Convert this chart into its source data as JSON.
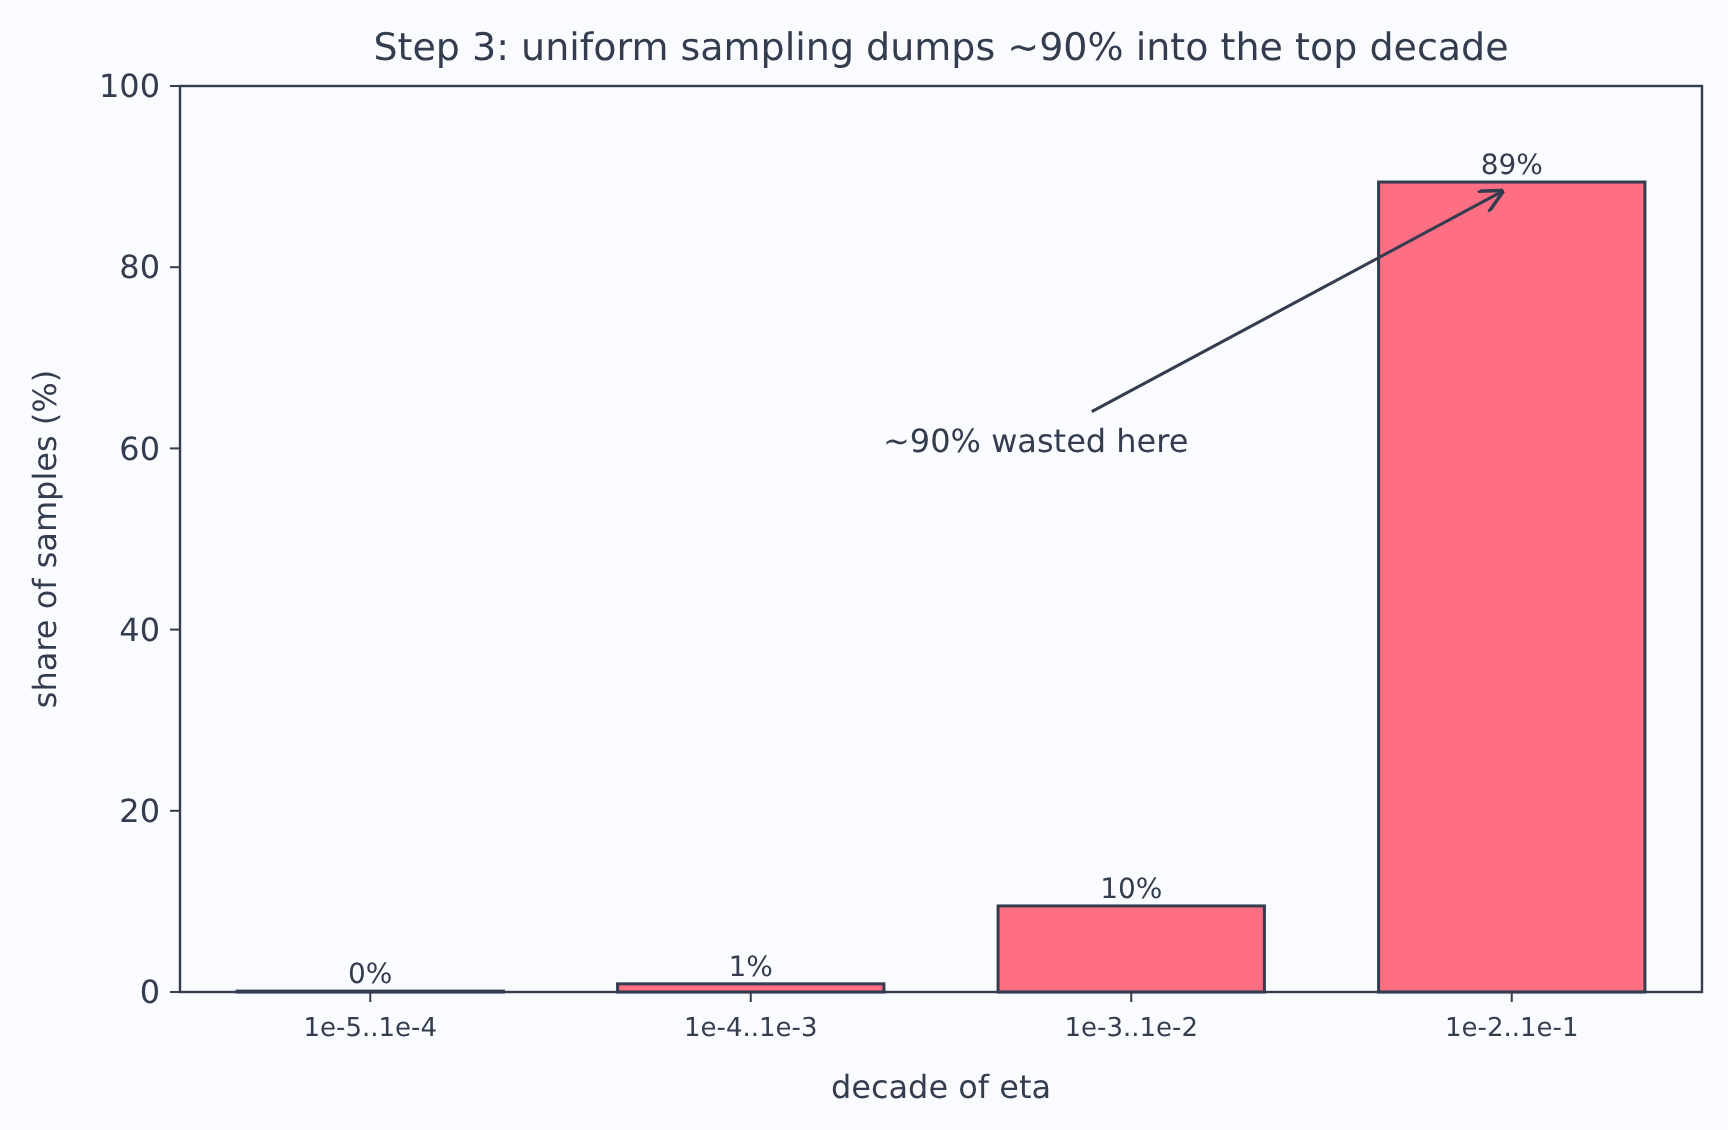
{
  "chart_data": {
    "type": "bar",
    "title": "Step 3: uniform sampling dumps ~90% into the top decade",
    "xlabel": "decade of eta",
    "ylabel": "share of samples (%)",
    "categories": [
      "1e-5..1e-4",
      "1e-4..1e-3",
      "1e-3..1e-2",
      "1e-2..1e-1"
    ],
    "values": [
      0.1,
      0.9,
      9.5,
      89.4
    ],
    "value_labels": [
      "0%",
      "1%",
      "10%",
      "89%"
    ],
    "color": "#ff6f83",
    "ylim": [
      0,
      100
    ],
    "yticks": [
      0,
      20,
      40,
      60,
      80,
      100
    ],
    "grid": false,
    "annotations": [
      {
        "text": "~90% wasted here",
        "x": "1e-2..1e-1",
        "y": 89
      }
    ]
  }
}
